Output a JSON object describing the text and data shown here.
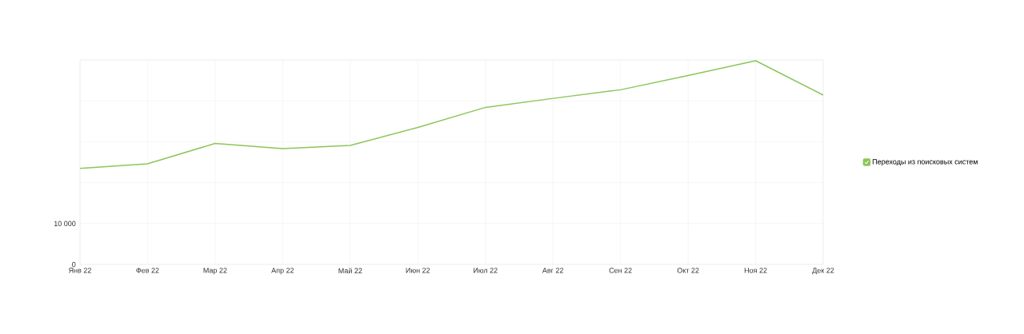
{
  "chart_data": {
    "type": "line",
    "categories": [
      "Янв 22",
      "Фев 22",
      "Мар 22",
      "Апр 22",
      "Май 22",
      "Июн 22",
      "Июл 22",
      "Авг 22",
      "Сен 22",
      "Окт 22",
      "Ноя 22",
      "Дек 22"
    ],
    "series": [
      {
        "name": "Переходы из поисковых систем",
        "color": "#8cc65a",
        "values": [
          23500,
          24600,
          29600,
          28300,
          29100,
          33500,
          38400,
          40600,
          42700,
          46200,
          49800,
          41400
        ]
      }
    ],
    "ylim": [
      0,
      50000
    ],
    "yticks": [
      0,
      {
        "value": 10000,
        "label": "10 000"
      },
      {
        "value": 20000,
        "label": null
      },
      {
        "value": 30000,
        "label": null
      },
      {
        "value": 40000,
        "label": null
      },
      {
        "value": 50000,
        "label": null
      }
    ],
    "grid": true,
    "legend": "right",
    "marker": "none",
    "line_style": "solid"
  }
}
